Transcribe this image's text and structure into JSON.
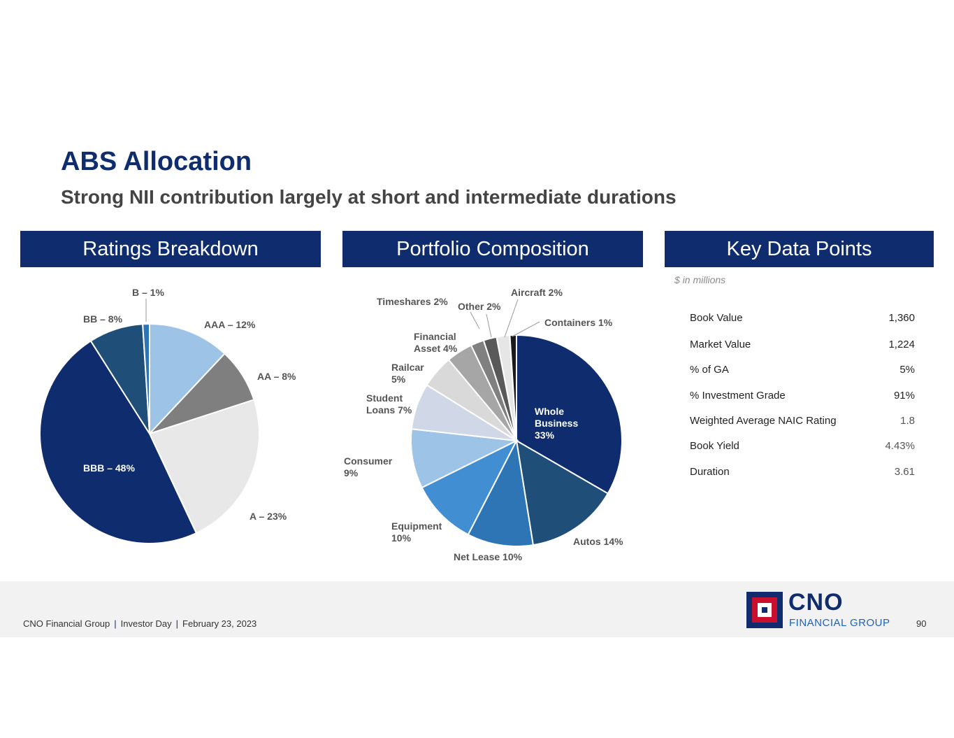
{
  "title": "ABS Allocation",
  "subtitle": "Strong NII contribution largely at short and intermediate durations",
  "panels": {
    "ratings": "Ratings Breakdown",
    "portfolio": "Portfolio Composition",
    "key": "Key Data Points"
  },
  "key_data": {
    "note": "$ in millions",
    "rows": [
      {
        "label": "Book Value",
        "value": "1,360"
      },
      {
        "label": "Market Value",
        "value": "1,224"
      },
      {
        "label": "% of GA",
        "value": "5%"
      },
      {
        "label": "% Investment Grade",
        "value": "91%"
      },
      {
        "label": "Weighted Average NAIC Rating",
        "value": "1.8"
      },
      {
        "label": "Book Yield",
        "value": "4.43%"
      },
      {
        "label": "Duration",
        "value": "3.61"
      }
    ]
  },
  "footer": {
    "company": "CNO Financial Group",
    "event": "Investor Day",
    "date": "February 23, 2023",
    "page": "90",
    "logo_text_1": "CNO",
    "logo_text_2": "FINANCIAL GROUP"
  },
  "chart_data": [
    {
      "type": "pie",
      "title": "Ratings Breakdown",
      "slices": [
        {
          "label": "AAA – 12%",
          "value": 12,
          "color": "#9dc3e6"
        },
        {
          "label": "AA – 8%",
          "value": 8,
          "color": "#7f7f7f"
        },
        {
          "label": "A – 23%",
          "value": 23,
          "color": "#e8e8e8"
        },
        {
          "label": "BBB – 48%",
          "value": 48,
          "color": "#0f2d6e"
        },
        {
          "label": "BB – 8%",
          "value": 8,
          "color": "#1f4e79"
        },
        {
          "label": "B – 1%",
          "value": 1,
          "color": "#2e75b6"
        }
      ]
    },
    {
      "type": "pie",
      "title": "Portfolio Composition",
      "slices": [
        {
          "label": "Whole Business 33%",
          "value": 33,
          "color": "#0f2d6e"
        },
        {
          "label": "Autos 14%",
          "value": 14,
          "color": "#1f4e79"
        },
        {
          "label": "Net Lease 10%",
          "value": 10,
          "color": "#2e75b6"
        },
        {
          "label": "Equipment 10%",
          "value": 10,
          "color": "#418fd2"
        },
        {
          "label": "Consumer 9%",
          "value": 9,
          "color": "#9dc3e6"
        },
        {
          "label": "Student Loans 7%",
          "value": 7,
          "color": "#d0d8e8"
        },
        {
          "label": "Railcar 5%",
          "value": 5,
          "color": "#d9d9d9"
        },
        {
          "label": "Financial Asset 4%",
          "value": 4,
          "color": "#a6a6a6"
        },
        {
          "label": "Timeshares 2%",
          "value": 2,
          "color": "#808080"
        },
        {
          "label": "Other 2%",
          "value": 2,
          "color": "#595959"
        },
        {
          "label": "Aircraft 2%",
          "value": 2,
          "color": "#e6e6e6"
        },
        {
          "label": "Containers 1%",
          "value": 1,
          "color": "#1a1a1a"
        }
      ]
    }
  ]
}
